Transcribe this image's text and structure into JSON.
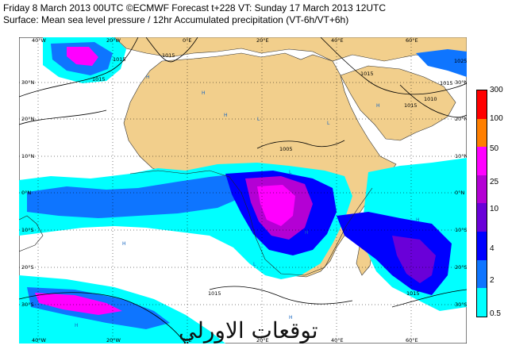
{
  "header": {
    "line1": "Friday 8 March 2013 00UTC ©ECMWF Forecast t+228 VT: Sunday 17 March 2013 12UTC",
    "line2": "Surface: Mean sea level pressure / 12hr Accumulated precipitation (VT-6h/VT+6h)"
  },
  "map": {
    "lon_labels": [
      "40°W",
      "20°W",
      "0°E",
      "20°E",
      "40°E",
      "60°E"
    ],
    "lat_labels_left": [
      "30°N",
      "20°N",
      "10°N",
      "0°N",
      "10°S",
      "20°S",
      "30°S"
    ],
    "lat_labels_right": [
      "30°N",
      "20°N",
      "10°N",
      "0°N",
      "10°S",
      "20°S",
      "30°S"
    ],
    "isobars": [
      "1015",
      "1015",
      "1015",
      "1015",
      "1010",
      "1005",
      "1015",
      "1015",
      "1025",
      "1015",
      "1015"
    ],
    "pressure_centers": [
      "H",
      "H",
      "H",
      "L",
      "L",
      "H",
      "L",
      "H",
      "H",
      "H",
      "L",
      "H",
      "H"
    ]
  },
  "legend": {
    "ticks": [
      "300",
      "100",
      "50",
      "25",
      "10",
      "4",
      "2",
      "0.5"
    ],
    "colors": [
      "#ff0000",
      "#ff7f00",
      "#ff00ff",
      "#b400d4",
      "#6a00d8",
      "#0000ff",
      "#0e75ff",
      "#00ffff"
    ]
  },
  "watermark": {
    "text": "توقعات الاورلي"
  }
}
